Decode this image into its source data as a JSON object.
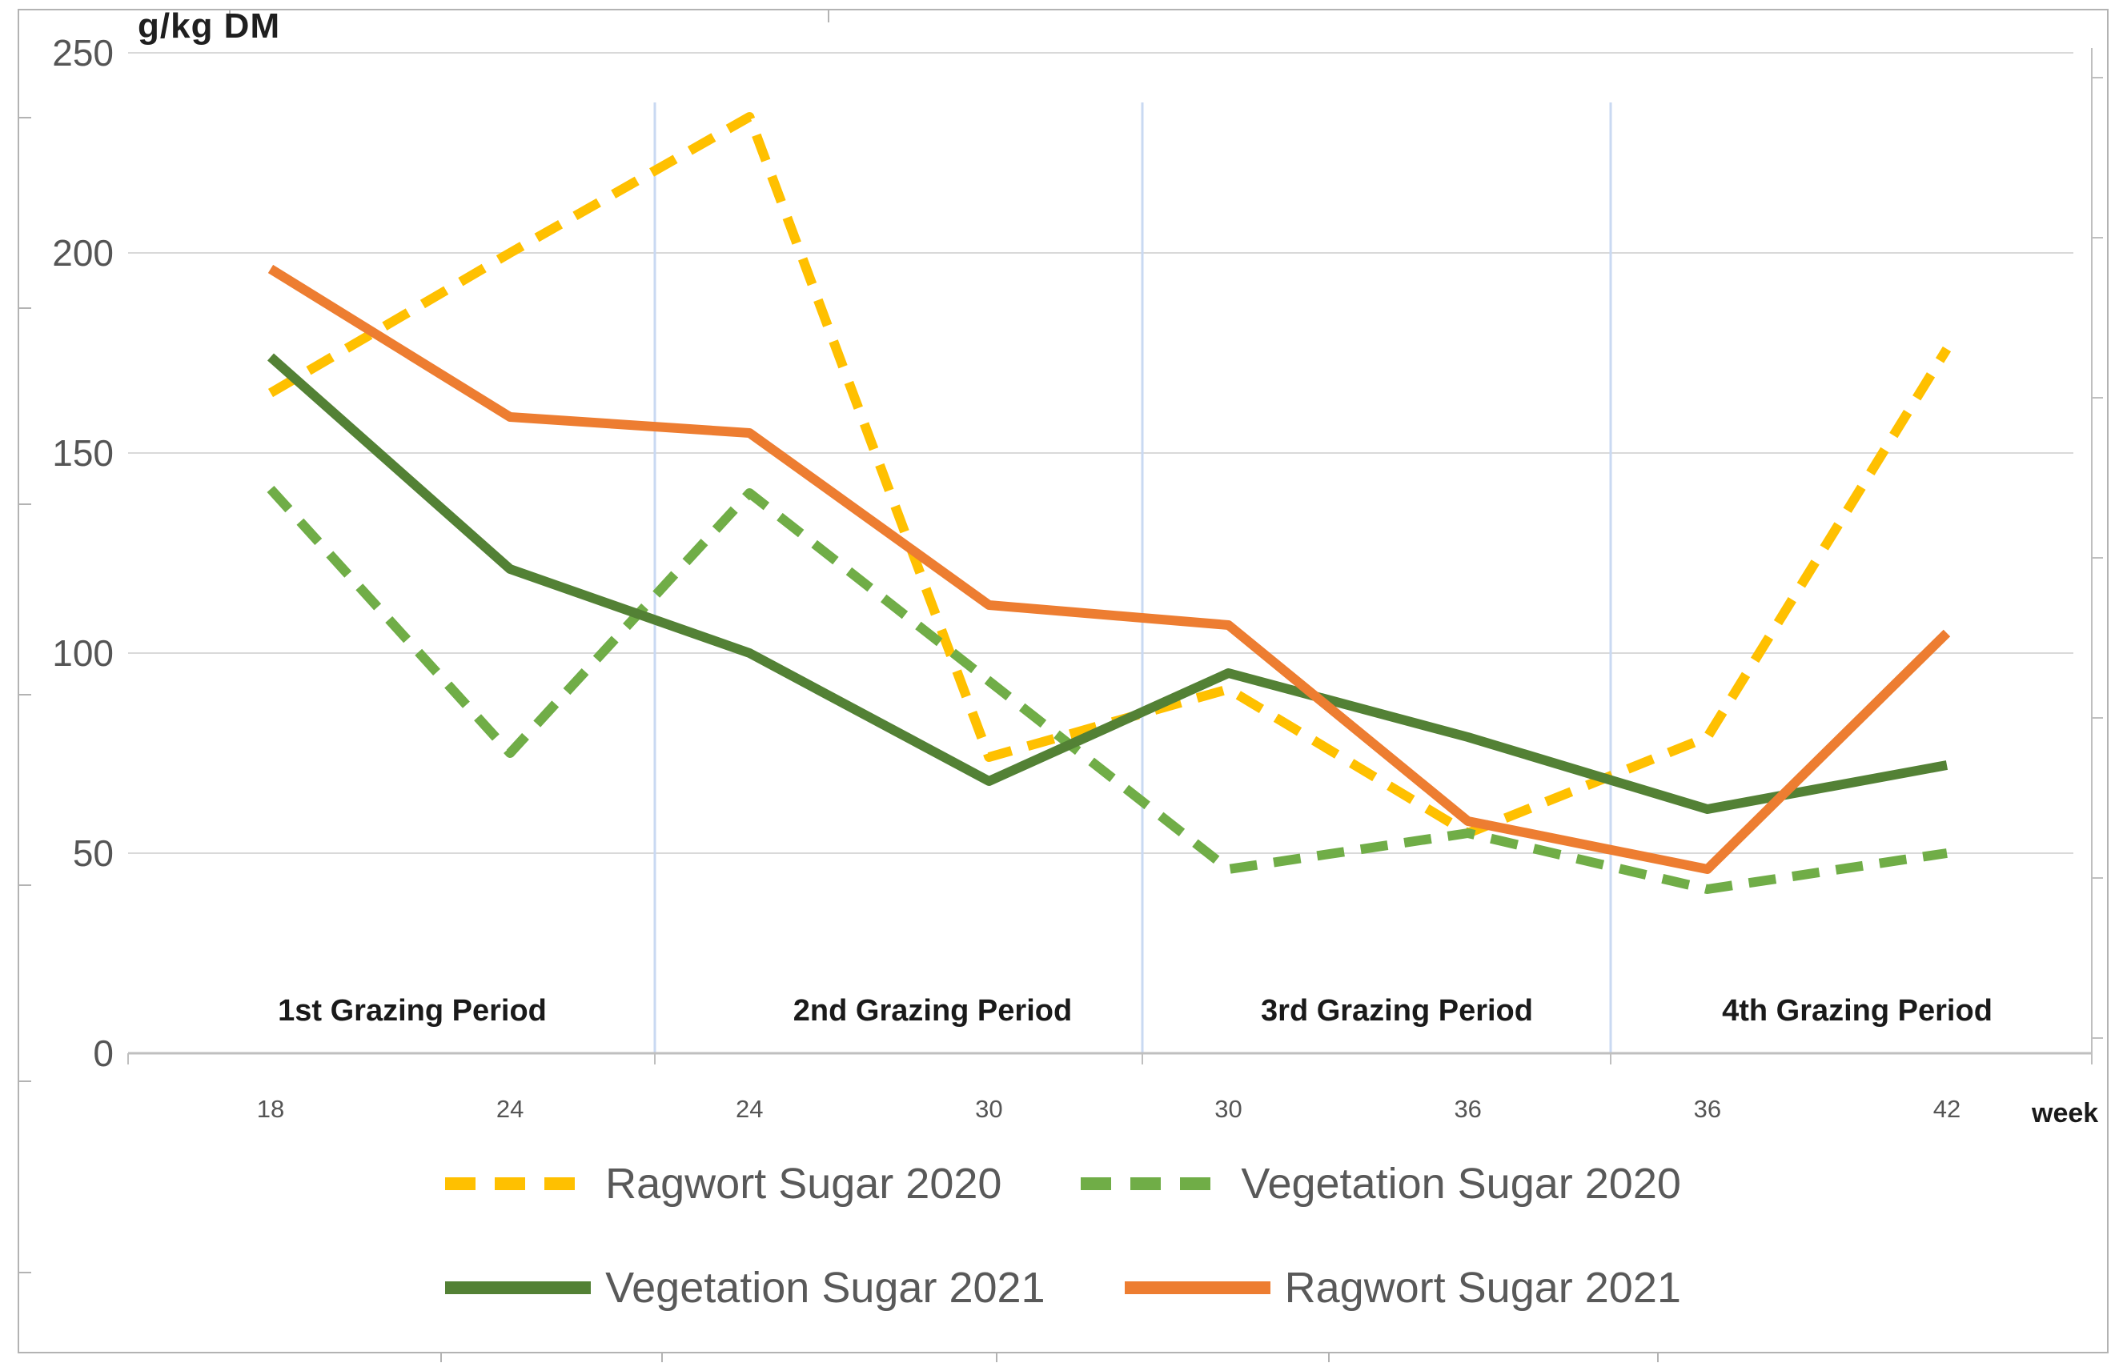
{
  "chart_data": {
    "type": "line",
    "title": "",
    "ylabel": "g/kg DM",
    "xlabel": "week",
    "categories": [
      "18",
      "24",
      "24",
      "30",
      "30",
      "36",
      "36",
      "42"
    ],
    "y_ticks": [
      250,
      200,
      150,
      100,
      50,
      0
    ],
    "ylim": [
      0,
      250
    ],
    "grid": true,
    "legend_position": "bottom",
    "periods": [
      "1st Grazing Period",
      "2nd Grazing Period",
      "3rd Grazing Period",
      "4th Grazing Period"
    ],
    "series": [
      {
        "name": "Ragwort Sugar 2020",
        "color": "#FFC000",
        "line_style": "dashed",
        "values": [
          165,
          200,
          234,
          74,
          91,
          55,
          79,
          176
        ]
      },
      {
        "name": "Vegetation Sugar 2020",
        "color": "#70AD47",
        "line_style": "dashed",
        "values": [
          141,
          75,
          140,
          93,
          46,
          55,
          41,
          50
        ]
      },
      {
        "name": "Vegetation Sugar 2021",
        "color": "#538135",
        "line_style": "solid",
        "values": [
          174,
          121,
          100,
          68,
          95,
          79,
          61,
          72
        ]
      },
      {
        "name": "Ragwort Sugar 2021",
        "color": "#ED7D31",
        "line_style": "solid",
        "values": [
          196,
          159,
          155,
          112,
          107,
          58,
          46,
          105
        ]
      }
    ],
    "colors": {
      "gridline": "#D9D9D9",
      "axis_line": "#BFBFBF",
      "period_separator": "#C9D9F2",
      "frame": "#B3B3B3",
      "axis_text": "#555555",
      "label_text": "#1A1A1A",
      "legend_text": "#595959"
    }
  }
}
